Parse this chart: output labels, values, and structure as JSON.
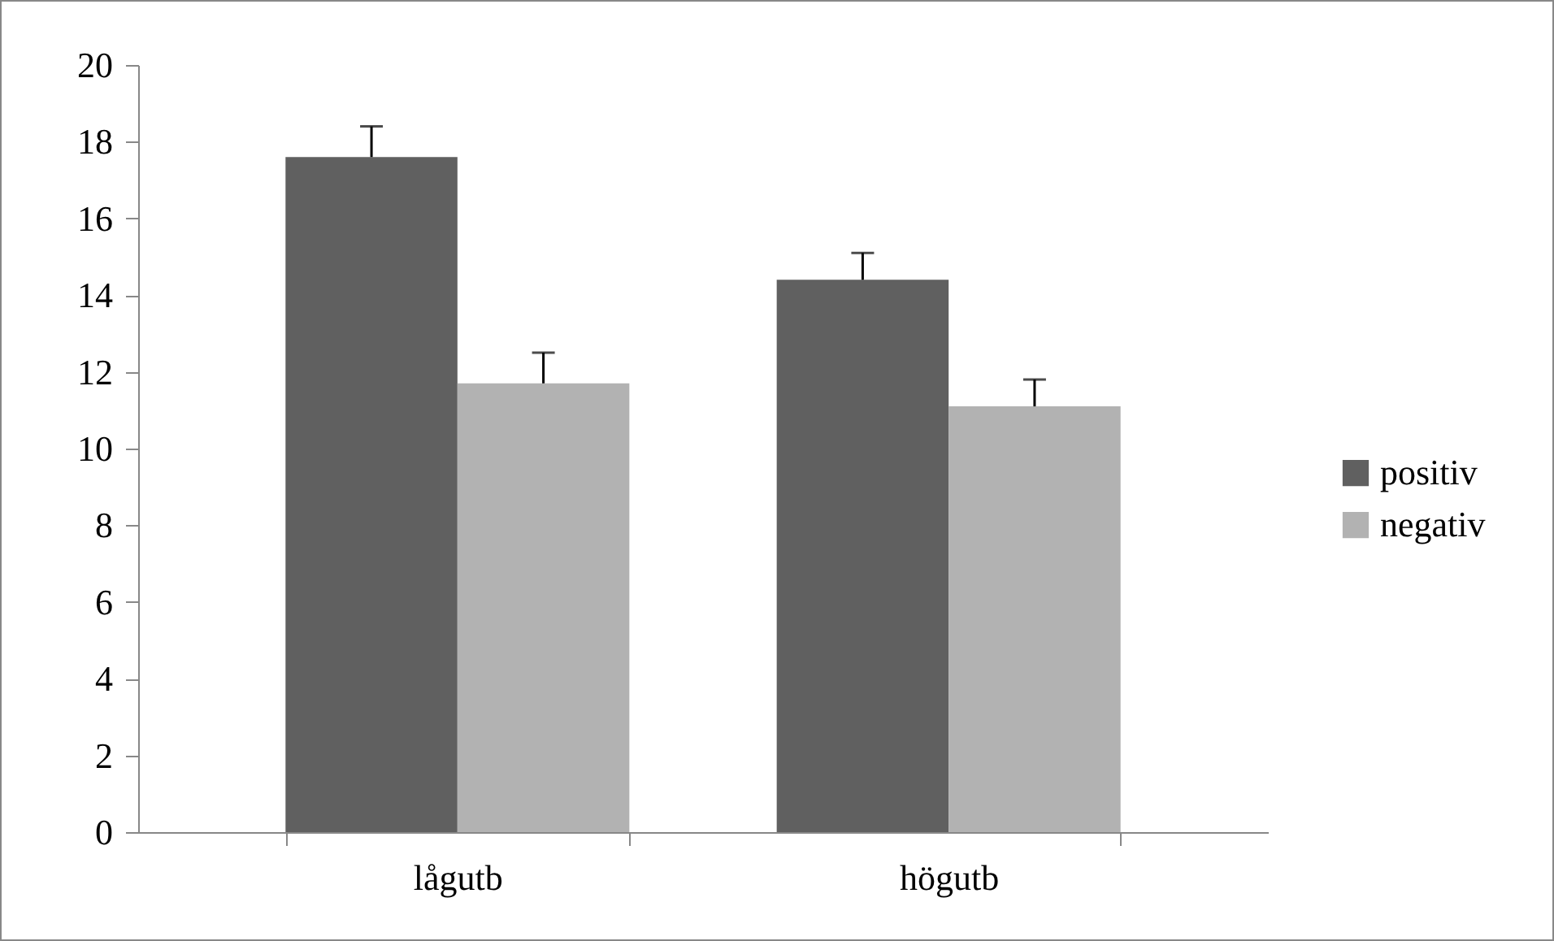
{
  "chart_data": {
    "type": "bar",
    "categories": [
      "lågutb",
      "högutb"
    ],
    "series": [
      {
        "name": "positiv",
        "color": "#606060",
        "values": [
          17.6,
          14.4
        ],
        "errors": [
          [
            17.6,
            18.4
          ],
          [
            14.4,
            15.1
          ]
        ]
      },
      {
        "name": "negativ",
        "color": "#b2b2b2",
        "values": [
          11.7,
          11.1
        ],
        "errors": [
          [
            11.7,
            12.5
          ],
          [
            11.1,
            11.8
          ]
        ]
      }
    ],
    "ylim": [
      0,
      20
    ],
    "yticks": [
      0,
      2,
      4,
      6,
      8,
      10,
      12,
      14,
      16,
      18,
      20
    ],
    "legend": "right"
  }
}
